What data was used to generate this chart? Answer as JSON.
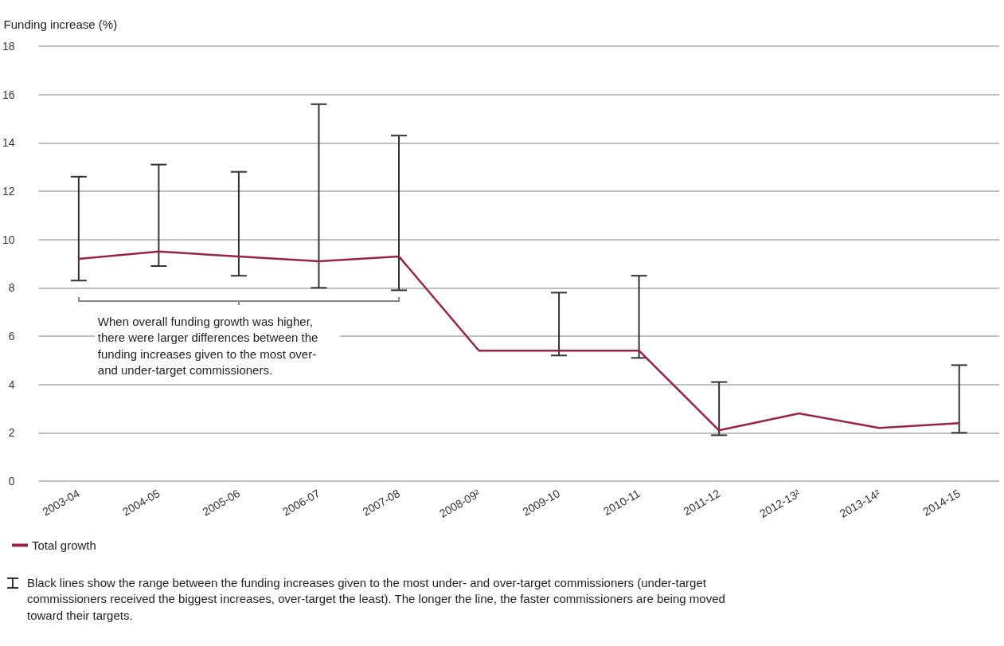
{
  "chart_data": {
    "type": "line",
    "ylabel": "Funding increase (%)",
    "categories": [
      "2003-04",
      "2004-05",
      "2005-06",
      "2006-07",
      "2007-08",
      "2008-09²",
      "2009-10",
      "2010-11",
      "2011-12",
      "2012-13²",
      "2013-14²",
      "2014-15"
    ],
    "series": [
      {
        "name": "Total growth",
        "color": "#9b2247",
        "values": [
          9.2,
          9.5,
          9.3,
          9.1,
          9.3,
          5.4,
          5.4,
          5.4,
          2.1,
          2.8,
          2.2,
          2.4
        ],
        "errors": [
          [
            8.3,
            12.6
          ],
          [
            8.9,
            13.1
          ],
          [
            8.5,
            12.8
          ],
          [
            8.0,
            15.6
          ],
          [
            7.9,
            14.3
          ],
          null,
          [
            5.2,
            7.8
          ],
          [
            5.1,
            8.5
          ],
          [
            1.9,
            4.1
          ],
          null,
          null,
          [
            2.0,
            4.8
          ]
        ]
      }
    ],
    "ylim": [
      0,
      18
    ],
    "yticks": [
      0,
      2,
      4,
      6,
      8,
      10,
      12,
      14,
      16,
      18
    ],
    "grid": "y",
    "legend": "bottom",
    "marker": "none",
    "line_style": "solid",
    "annotations": [
      "When overall funding growth was higher, there were larger differences between the funding increases given to the most over- and under-target commissioners.",
      "Black lines show the range between the funding increases given to the most under- and over-target commissioners (under-target commissioners received the biggest increases, over-target the least). The longer the line, the faster commissioners are being moved toward their targets."
    ]
  }
}
